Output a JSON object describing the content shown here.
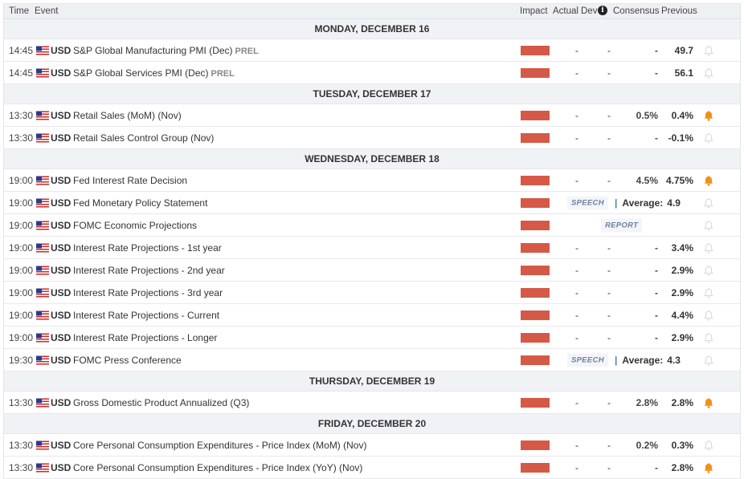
{
  "header": {
    "time": "Time",
    "event": "Event",
    "impact": "Impact",
    "actual": "Actual",
    "dev": "Dev",
    "info": "i",
    "consensus": "Consensus",
    "previous": "Previous"
  },
  "colors": {
    "impact_high": "#d55947",
    "bell_active": "#f0901a",
    "bell_inactive": "#d8d8d8"
  },
  "sections": [
    {
      "day": "MONDAY, DECEMBER 16",
      "events": [
        {
          "time": "14:45",
          "currency": "USD",
          "event": "S&P Global Manufacturing PMI (Dec)",
          "tag": "PREL",
          "actual": "-",
          "dev": "-",
          "consensus": "-",
          "previous": "49.7",
          "alert": false
        },
        {
          "time": "14:45",
          "currency": "USD",
          "event": "S&P Global Services PMI (Dec)",
          "tag": "PREL",
          "actual": "-",
          "dev": "-",
          "consensus": "-",
          "previous": "56.1",
          "alert": false
        }
      ]
    },
    {
      "day": "TUESDAY, DECEMBER 17",
      "events": [
        {
          "time": "13:30",
          "currency": "USD",
          "event": "Retail Sales (MoM) (Nov)",
          "actual": "-",
          "dev": "-",
          "consensus": "0.5%",
          "previous": "0.4%",
          "alert": true
        },
        {
          "time": "13:30",
          "currency": "USD",
          "event": "Retail Sales Control Group (Nov)",
          "actual": "-",
          "dev": "-",
          "consensus": "-",
          "previous": "-0.1%",
          "alert": false
        }
      ]
    },
    {
      "day": "WEDNESDAY, DECEMBER 18",
      "events": [
        {
          "time": "19:00",
          "currency": "USD",
          "event": "Fed Interest Rate Decision",
          "actual": "-",
          "dev": "-",
          "consensus": "4.5%",
          "previous": "4.75%",
          "alert": true
        },
        {
          "time": "19:00",
          "currency": "USD",
          "event": "Fed Monetary Policy Statement",
          "kind": "SPEECH",
          "separator": "|",
          "average_label": "Average:",
          "average": "4.9",
          "alert": false
        },
        {
          "time": "19:00",
          "currency": "USD",
          "event": "FOMC Economic Projections",
          "kind": "REPORT",
          "alert": false
        },
        {
          "time": "19:00",
          "currency": "USD",
          "event": "Interest Rate Projections - 1st year",
          "actual": "-",
          "dev": "-",
          "consensus": "-",
          "previous": "3.4%",
          "alert": false
        },
        {
          "time": "19:00",
          "currency": "USD",
          "event": "Interest Rate Projections - 2nd year",
          "actual": "-",
          "dev": "-",
          "consensus": "-",
          "previous": "2.9%",
          "alert": false
        },
        {
          "time": "19:00",
          "currency": "USD",
          "event": "Interest Rate Projections - 3rd year",
          "actual": "-",
          "dev": "-",
          "consensus": "-",
          "previous": "2.9%",
          "alert": false
        },
        {
          "time": "19:00",
          "currency": "USD",
          "event": "Interest Rate Projections - Current",
          "actual": "-",
          "dev": "-",
          "consensus": "-",
          "previous": "4.4%",
          "alert": false
        },
        {
          "time": "19:00",
          "currency": "USD",
          "event": "Interest Rate Projections - Longer",
          "actual": "-",
          "dev": "-",
          "consensus": "-",
          "previous": "2.9%",
          "alert": false
        },
        {
          "time": "19:30",
          "currency": "USD",
          "event": "FOMC Press Conference",
          "kind": "SPEECH",
          "separator": "|",
          "average_label": "Average:",
          "average": "4.3",
          "alert": false
        }
      ]
    },
    {
      "day": "THURSDAY, DECEMBER 19",
      "events": [
        {
          "time": "13:30",
          "currency": "USD",
          "event": "Gross Domestic Product Annualized (Q3)",
          "actual": "-",
          "dev": "-",
          "consensus": "2.8%",
          "previous": "2.8%",
          "alert": true
        }
      ]
    },
    {
      "day": "FRIDAY, DECEMBER 20",
      "events": [
        {
          "time": "13:30",
          "currency": "USD",
          "event": "Core Personal Consumption Expenditures - Price Index (MoM) (Nov)",
          "actual": "-",
          "dev": "-",
          "consensus": "0.2%",
          "previous": "0.3%",
          "alert": false
        },
        {
          "time": "13:30",
          "currency": "USD",
          "event": "Core Personal Consumption Expenditures - Price Index (YoY) (Nov)",
          "actual": "-",
          "dev": "-",
          "consensus": "-",
          "previous": "2.8%",
          "alert": true
        }
      ]
    }
  ]
}
